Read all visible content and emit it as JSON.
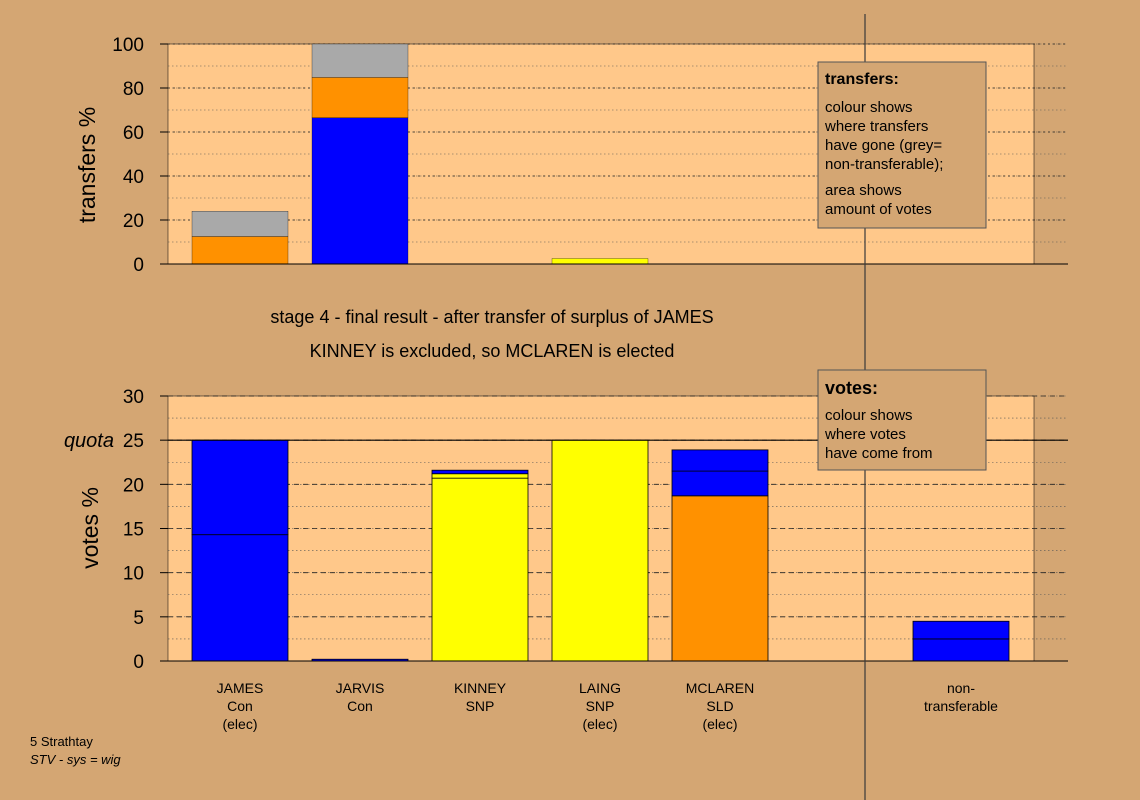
{
  "colors": {
    "background": "#d4a673",
    "plot_bg": "#ffc88a",
    "con": "#0000ff",
    "snp": "#ffff00",
    "sld": "#ff9100",
    "nontransferable": "#a9a9a9",
    "legend_bg": "#d4a673"
  },
  "stage_title": "stage 4 - final result - after transfer of surplus of JAMES",
  "stage_subtitle": "KINNEY is excluded, so MCLAREN is elected",
  "footer": {
    "line1": "5 Strathtay",
    "line2": "STV - sys = wig"
  },
  "legend_transfers": {
    "title": "transfers:",
    "lines": [
      "colour shows",
      "where transfers",
      "have gone (grey=",
      "non-transferable);",
      "area shows",
      "amount of votes"
    ]
  },
  "legend_votes": {
    "title": "votes:",
    "lines": [
      "colour shows",
      "where votes",
      "have come from"
    ]
  },
  "chart_data": [
    {
      "type": "bar",
      "stacked": true,
      "ylabel": "transfers %",
      "ylim": [
        0,
        100
      ],
      "yticks": [
        "0",
        "20",
        "40",
        "60",
        "80",
        "100"
      ],
      "bars": [
        {
          "slot": 0,
          "segments": [
            {
              "color": "sld",
              "value": 12.5
            },
            {
              "color": "nontransferable",
              "value": 11.5
            }
          ]
        },
        {
          "slot": 1,
          "segments": [
            {
              "color": "con",
              "value": 66.5
            },
            {
              "color": "sld",
              "value": 18.3
            },
            {
              "color": "nontransferable",
              "value": 15.2
            }
          ]
        },
        {
          "slot": 3,
          "segments": [
            {
              "color": "snp",
              "value": 2.5
            }
          ]
        }
      ]
    },
    {
      "type": "bar",
      "stacked": true,
      "ylabel": "votes %",
      "ylim": [
        0,
        30
      ],
      "yticks": [
        "0",
        "5",
        "10",
        "15",
        "20",
        "25",
        "30"
      ],
      "quota": {
        "label": "quota",
        "value": 25
      },
      "categories": [
        {
          "lines": [
            "JAMES",
            "Con",
            "(elec)"
          ],
          "slot": 0
        },
        {
          "lines": [
            "JARVIS",
            "Con"
          ],
          "slot": 1
        },
        {
          "lines": [
            "KINNEY",
            "SNP"
          ],
          "slot": 2
        },
        {
          "lines": [
            "LAING",
            "SNP",
            "(elec)"
          ],
          "slot": 3
        },
        {
          "lines": [
            "MCLAREN",
            "SLD",
            "(elec)"
          ],
          "slot": 4
        },
        {
          "lines": [
            "non-",
            "transferable"
          ],
          "slot": 6
        }
      ],
      "bars": [
        {
          "slot": 0,
          "segments": [
            {
              "color": "con",
              "value": 14.3
            },
            {
              "color": "con",
              "value": 10.7
            }
          ]
        },
        {
          "slot": 1,
          "segments": [
            {
              "color": "con",
              "value": 0.2
            }
          ]
        },
        {
          "slot": 2,
          "segments": [
            {
              "color": "snp",
              "value": 20.7
            },
            {
              "color": "snp",
              "value": 0.5
            },
            {
              "color": "con",
              "value": 0.4
            }
          ]
        },
        {
          "slot": 3,
          "segments": [
            {
              "color": "snp",
              "value": 25.0
            }
          ]
        },
        {
          "slot": 4,
          "segments": [
            {
              "color": "sld",
              "value": 18.7
            },
            {
              "color": "con",
              "value": 2.8
            },
            {
              "color": "con",
              "value": 2.4
            }
          ]
        },
        {
          "slot": 6,
          "segments": [
            {
              "color": "con",
              "value": 2.5
            },
            {
              "color": "con",
              "value": 2.0
            }
          ]
        }
      ]
    }
  ]
}
